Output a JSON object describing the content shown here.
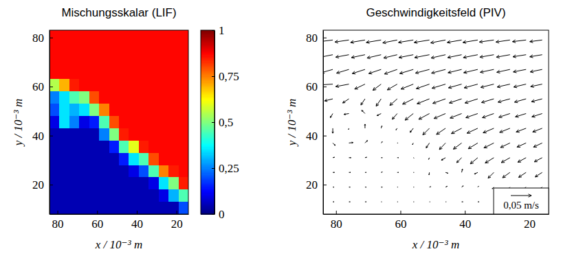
{
  "chart_data": [
    {
      "type": "heatmap",
      "title": "Mischungsskalar (LIF)",
      "x_label": "x / 10⁻³ m",
      "y_label": "y / 10⁻³ m",
      "xlim": [
        84,
        14
      ],
      "ylim": [
        8,
        83
      ],
      "xticks": [
        80,
        60,
        40,
        20
      ],
      "yticks": [
        20,
        40,
        60,
        80
      ],
      "x_edges": [
        84,
        79,
        74,
        69,
        64,
        59,
        54,
        49,
        44,
        39,
        34,
        29,
        24,
        19,
        14
      ],
      "y_edges": [
        83,
        78,
        73,
        68,
        63,
        58,
        53,
        48,
        43,
        38,
        33,
        28,
        23,
        18,
        13,
        8
      ],
      "values": [
        [
          0.87,
          0.87,
          0.87,
          0.87,
          0.87,
          0.87,
          0.87,
          0.87,
          0.87,
          0.87,
          0.87,
          0.87,
          0.87,
          0.87
        ],
        [
          0.87,
          0.87,
          0.87,
          0.87,
          0.87,
          0.87,
          0.87,
          0.87,
          0.87,
          0.87,
          0.87,
          0.87,
          0.87,
          0.87
        ],
        [
          0.87,
          0.87,
          0.87,
          0.87,
          0.87,
          0.87,
          0.87,
          0.87,
          0.87,
          0.87,
          0.87,
          0.87,
          0.87,
          0.87
        ],
        [
          0.87,
          0.87,
          0.87,
          0.87,
          0.87,
          0.87,
          0.87,
          0.87,
          0.87,
          0.87,
          0.87,
          0.87,
          0.87,
          0.87
        ],
        [
          0.55,
          0.7,
          0.85,
          0.87,
          0.87,
          0.87,
          0.87,
          0.87,
          0.87,
          0.87,
          0.87,
          0.87,
          0.87,
          0.87
        ],
        [
          0.25,
          0.35,
          0.45,
          0.5,
          0.8,
          0.87,
          0.87,
          0.87,
          0.87,
          0.87,
          0.87,
          0.87,
          0.87,
          0.87
        ],
        [
          0.2,
          0.35,
          0.3,
          0.35,
          0.5,
          0.75,
          0.87,
          0.87,
          0.87,
          0.87,
          0.87,
          0.87,
          0.87,
          0.87
        ],
        [
          0.1,
          0.35,
          0.25,
          0.1,
          0.15,
          0.45,
          0.8,
          0.87,
          0.87,
          0.87,
          0.87,
          0.87,
          0.87,
          0.87
        ],
        [
          0.05,
          0.05,
          0.05,
          0.05,
          0.05,
          0.25,
          0.5,
          0.85,
          0.87,
          0.87,
          0.87,
          0.87,
          0.87,
          0.87
        ],
        [
          0.05,
          0.05,
          0.05,
          0.05,
          0.05,
          0.05,
          0.15,
          0.45,
          0.6,
          0.85,
          0.87,
          0.87,
          0.87,
          0.87
        ],
        [
          0.05,
          0.05,
          0.05,
          0.05,
          0.05,
          0.05,
          0.05,
          0.15,
          0.35,
          0.45,
          0.8,
          0.87,
          0.87,
          0.87
        ],
        [
          0.05,
          0.05,
          0.05,
          0.05,
          0.05,
          0.05,
          0.05,
          0.05,
          0.1,
          0.2,
          0.45,
          0.75,
          0.85,
          0.87
        ],
        [
          0.05,
          0.05,
          0.05,
          0.05,
          0.05,
          0.05,
          0.05,
          0.05,
          0.05,
          0.05,
          0.1,
          0.35,
          0.5,
          0.85
        ],
        [
          0.05,
          0.05,
          0.05,
          0.05,
          0.05,
          0.05,
          0.05,
          0.05,
          0.05,
          0.05,
          0.05,
          0.1,
          0.3,
          0.45
        ],
        [
          0.05,
          0.05,
          0.05,
          0.05,
          0.05,
          0.05,
          0.05,
          0.05,
          0.05,
          0.05,
          0.05,
          0.05,
          0.05,
          0.2
        ]
      ],
      "colorbar": {
        "range": [
          0,
          1
        ],
        "ticks": [
          0,
          {
            "value": 0.25,
            "label": "0,25"
          },
          {
            "value": 0.5,
            "label": "0,5"
          },
          {
            "value": 0.75,
            "label": "0,75"
          },
          1
        ]
      }
    },
    {
      "type": "quiver",
      "title": "Geschwindigkeitsfeld (PIV)",
      "x_label": "x / 10⁻³ m",
      "y_label": "y / 10⁻³ m",
      "xlim": [
        84,
        14
      ],
      "ylim": [
        8,
        83
      ],
      "xticks": [
        80,
        60,
        40,
        20
      ],
      "yticks": [
        20,
        40,
        60,
        80
      ],
      "x": [
        81,
        76,
        71,
        66,
        61,
        56,
        51,
        46,
        41,
        36,
        31,
        26,
        21,
        16
      ],
      "y": [
        79,
        73,
        67,
        61,
        55,
        49,
        43,
        37,
        31,
        25,
        19,
        13
      ],
      "u": [
        [
          0.032,
          0.034,
          0.035,
          0.036,
          0.035,
          0.036,
          0.037,
          0.036,
          0.035,
          0.036,
          0.035,
          0.034,
          0.033,
          0.03
        ],
        [
          0.03,
          0.032,
          0.033,
          0.034,
          0.033,
          0.035,
          0.036,
          0.035,
          0.034,
          0.035,
          0.034,
          0.033,
          0.032,
          0.03
        ],
        [
          0.028,
          0.03,
          0.031,
          0.03,
          0.031,
          0.033,
          0.034,
          0.034,
          0.033,
          0.034,
          0.033,
          0.032,
          0.031,
          0.029
        ],
        [
          0.035,
          0.032,
          0.025,
          0.02,
          0.024,
          0.03,
          0.032,
          0.033,
          0.032,
          0.033,
          0.032,
          0.031,
          0.03,
          0.028
        ],
        [
          0.02,
          0.015,
          0.01,
          0.012,
          0.018,
          0.026,
          0.03,
          0.031,
          0.03,
          0.031,
          0.03,
          0.029,
          0.028,
          0.026
        ],
        [
          0.006,
          0.012,
          0.008,
          0.01,
          0.012,
          0.02,
          0.026,
          0.028,
          0.028,
          0.029,
          0.028,
          0.027,
          0.026,
          0.025
        ],
        [
          0,
          0.001,
          0,
          -0.002,
          0.003,
          0.008,
          0.016,
          0.022,
          0.025,
          0.026,
          0.026,
          0.025,
          0.024,
          0.023
        ],
        [
          -0.006,
          -0.01,
          -0.006,
          -0.003,
          -0.002,
          0.002,
          0.008,
          0.015,
          0.02,
          0.023,
          0.024,
          0.023,
          0.022,
          0.021
        ],
        [
          -0.004,
          -0.005,
          -0.004,
          -0.003,
          -0.003,
          -0.002,
          0.002,
          0.01,
          0.012,
          0.018,
          0.021,
          0.021,
          0.02,
          0.019
        ],
        [
          -0.004,
          -0.004,
          -0.003,
          -0.003,
          -0.003,
          -0.002,
          0.001,
          -0.006,
          -0.002,
          0.008,
          0.014,
          0.018,
          0.018,
          0.017
        ],
        [
          -0.003,
          -0.003,
          -0.003,
          -0.003,
          -0.002,
          -0.002,
          -0.003,
          -0.004,
          -0.004,
          -0.002,
          0.004,
          0.01,
          0.015,
          0.015
        ],
        [
          -0.003,
          -0.003,
          -0.003,
          -0.002,
          -0.002,
          -0.002,
          -0.002,
          -0.002,
          -0.003,
          -0.003,
          -0.002,
          -0.002,
          0.004,
          0.008
        ]
      ],
      "v": [
        [
          -0.004,
          -0.005,
          -0.006,
          -0.006,
          -0.007,
          -0.006,
          -0.006,
          -0.007,
          -0.006,
          -0.006,
          -0.005,
          -0.005,
          -0.004,
          -0.004
        ],
        [
          -0.006,
          -0.006,
          -0.007,
          -0.008,
          -0.008,
          -0.007,
          -0.007,
          -0.008,
          -0.007,
          -0.007,
          -0.006,
          -0.006,
          -0.005,
          -0.005
        ],
        [
          -0.008,
          -0.009,
          -0.01,
          -0.01,
          -0.011,
          -0.01,
          -0.009,
          -0.009,
          -0.008,
          -0.008,
          -0.007,
          -0.007,
          -0.006,
          -0.006
        ],
        [
          -0.002,
          -0.006,
          -0.012,
          -0.015,
          -0.014,
          -0.012,
          -0.011,
          -0.01,
          -0.009,
          -0.009,
          -0.008,
          -0.007,
          -0.007,
          -0.006
        ],
        [
          -0.005,
          -0.01,
          -0.015,
          -0.018,
          -0.016,
          -0.013,
          -0.012,
          -0.011,
          -0.01,
          -0.01,
          -0.009,
          -0.008,
          -0.008,
          -0.007
        ],
        [
          -0.01,
          -0.002,
          0.008,
          -0.005,
          -0.014,
          -0.016,
          -0.014,
          -0.012,
          -0.011,
          -0.01,
          -0.01,
          -0.009,
          -0.008,
          -0.008
        ],
        [
          -0.012,
          -0.003,
          0.01,
          0.006,
          -0.004,
          -0.01,
          -0.016,
          -0.015,
          -0.013,
          -0.012,
          -0.011,
          -0.01,
          -0.009,
          -0.009
        ],
        [
          -0.006,
          0.001,
          0.006,
          0.003,
          0,
          -0.004,
          -0.012,
          -0.016,
          -0.015,
          -0.014,
          -0.012,
          -0.011,
          -0.01,
          -0.01
        ],
        [
          0.001,
          0,
          0.001,
          0,
          0,
          -0.001,
          -0.004,
          -0.006,
          -0.012,
          -0.015,
          -0.013,
          -0.012,
          -0.011,
          -0.01
        ],
        [
          0,
          0,
          0,
          0.001,
          0,
          0,
          -0.006,
          -0.002,
          0.008,
          -0.004,
          -0.014,
          -0.013,
          -0.012,
          -0.011
        ],
        [
          0,
          0,
          0,
          0,
          0,
          0,
          0.001,
          0.002,
          0.003,
          0.002,
          -0.004,
          -0.01,
          -0.012,
          -0.011
        ],
        [
          0,
          0,
          0,
          0,
          0,
          0,
          0,
          0,
          0,
          0,
          0,
          0.001,
          -0.004,
          -0.008
        ]
      ],
      "reference": {
        "value": 0.05,
        "label": "0,05 m/s"
      }
    }
  ]
}
